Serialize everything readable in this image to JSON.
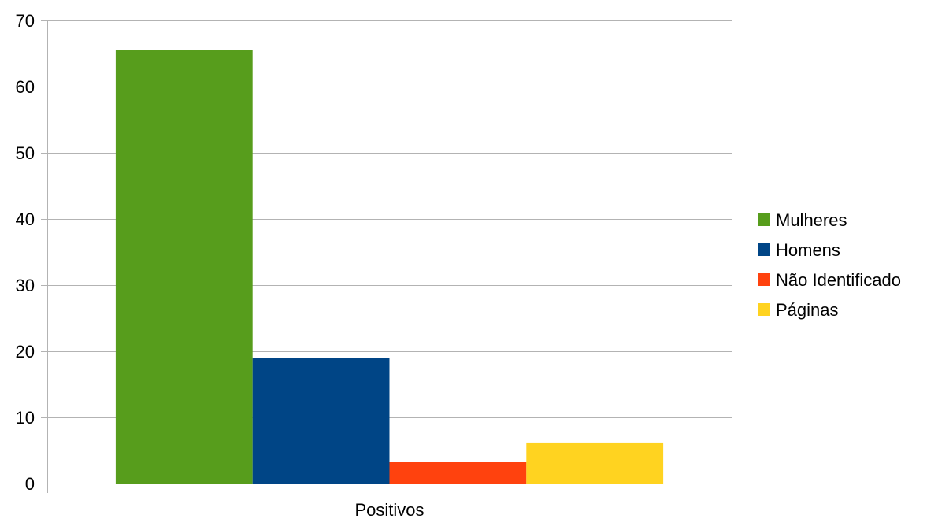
{
  "chart_data": {
    "type": "bar",
    "categories": [
      "Positivos"
    ],
    "series": [
      {
        "name": "Mulheres",
        "values": [
          65.5
        ],
        "color": "#579d1c"
      },
      {
        "name": "Homens",
        "values": [
          19
        ],
        "color": "#004586"
      },
      {
        "name": "Não Identificado",
        "values": [
          3.3
        ],
        "color": "#ff420e"
      },
      {
        "name": "Páginas",
        "values": [
          6.2
        ],
        "color": "#ffd320"
      }
    ],
    "title": "",
    "xlabel": "",
    "ylabel": "",
    "ylim": [
      0,
      70
    ],
    "yticks": [
      0,
      10,
      20,
      30,
      40,
      50,
      60,
      70
    ],
    "grid": true,
    "legend_position": "right"
  }
}
